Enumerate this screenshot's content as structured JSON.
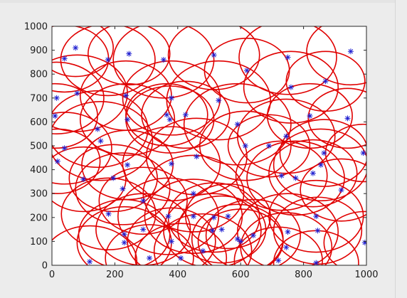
{
  "chart_data": {
    "type": "scatter",
    "title": "",
    "xlabel": "",
    "ylabel": "",
    "xlim": [
      0,
      1000
    ],
    "ylim": [
      0,
      1000
    ],
    "xticks": [
      "0",
      "200",
      "400",
      "600",
      "800",
      "1000"
    ],
    "yticks": [
      "0",
      "100",
      "200",
      "300",
      "400",
      "500",
      "600",
      "700",
      "800",
      "900",
      "1000"
    ],
    "grid": false,
    "legend": "none",
    "marker_color": "#1f1fd0",
    "circle_color": "#e00000",
    "marker": "asterisk",
    "series": [
      {
        "points": [
          [
            40,
            865
          ],
          [
            75,
            910
          ],
          [
            178,
            860
          ],
          [
            245,
            885
          ],
          [
            355,
            860
          ],
          [
            515,
            880
          ],
          [
            620,
            815
          ],
          [
            750,
            870
          ],
          [
            870,
            770
          ],
          [
            950,
            895
          ],
          [
            15,
            700
          ],
          [
            10,
            625
          ],
          [
            80,
            720
          ],
          [
            235,
            710
          ],
          [
            380,
            700
          ],
          [
            365,
            630
          ],
          [
            425,
            630
          ],
          [
            530,
            690
          ],
          [
            760,
            745
          ],
          [
            820,
            625
          ],
          [
            940,
            615
          ],
          [
            145,
            570
          ],
          [
            240,
            610
          ],
          [
            375,
            610
          ],
          [
            590,
            590
          ],
          [
            745,
            540
          ],
          [
            690,
            500
          ],
          [
            615,
            500
          ],
          [
            865,
            470
          ],
          [
            990,
            470
          ],
          [
            40,
            490
          ],
          [
            155,
            520
          ],
          [
            18,
            435
          ],
          [
            460,
            455
          ],
          [
            240,
            420
          ],
          [
            380,
            425
          ],
          [
            855,
            420
          ],
          [
            100,
            360
          ],
          [
            195,
            365
          ],
          [
            225,
            320
          ],
          [
            450,
            300
          ],
          [
            730,
            375
          ],
          [
            775,
            365
          ],
          [
            830,
            385
          ],
          [
            920,
            315
          ],
          [
            180,
            215
          ],
          [
            290,
            270
          ],
          [
            370,
            205
          ],
          [
            450,
            205
          ],
          [
            515,
            200
          ],
          [
            560,
            205
          ],
          [
            840,
            205
          ],
          [
            845,
            145
          ],
          [
            230,
            130
          ],
          [
            290,
            150
          ],
          [
            510,
            145
          ],
          [
            540,
            150
          ],
          [
            750,
            140
          ],
          [
            640,
            125
          ],
          [
            590,
            110
          ],
          [
            600,
            100
          ],
          [
            380,
            100
          ],
          [
            230,
            95
          ],
          [
            745,
            75
          ],
          [
            995,
            95
          ],
          [
            720,
            20
          ],
          [
            840,
            10
          ],
          [
            120,
            15
          ],
          [
            410,
            30
          ],
          [
            480,
            60
          ],
          [
            310,
            30
          ]
        ],
        "radii": [
          140,
          120,
          150,
          130,
          160,
          145,
          135,
          155,
          125,
          140,
          150,
          135,
          160,
          145,
          155,
          130,
          140,
          165,
          150,
          135,
          125,
          160,
          150,
          140,
          170,
          155,
          130,
          145,
          140,
          120,
          150,
          165,
          135,
          160,
          145,
          155,
          150,
          135,
          140,
          150,
          160,
          145,
          155,
          140,
          130,
          150,
          140,
          160,
          155,
          145,
          135,
          150,
          140,
          145,
          150,
          155,
          140,
          160,
          150,
          145,
          135,
          140,
          150,
          145,
          130,
          140,
          135,
          150,
          145,
          155,
          140
        ]
      }
    ]
  }
}
